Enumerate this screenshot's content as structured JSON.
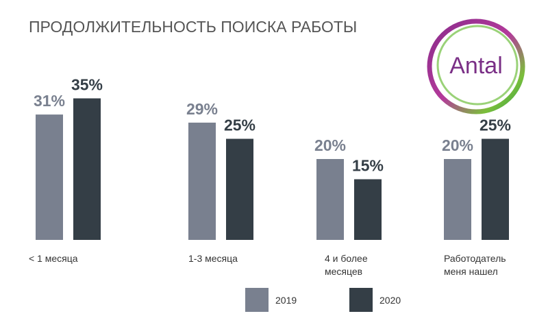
{
  "chart_data": {
    "type": "bar",
    "title": "ПРОДОЛЖИТЕЛЬНОСТЬ ПОИСКА РАБОТЫ",
    "categories": [
      "< 1 месяца",
      "1-3 месяца",
      "4 и более месяцев",
      "Работодатель меня нашел"
    ],
    "series": [
      {
        "name": "2019",
        "color": "#79808f",
        "values": [
          31,
          29,
          20,
          20
        ],
        "value_labels": [
          "31%",
          "29%",
          "20%",
          "20%"
        ]
      },
      {
        "name": "2020",
        "color": "#343e46",
        "values": [
          35,
          25,
          15,
          25
        ],
        "value_labels": [
          "35%",
          "25%",
          "15%",
          "25%"
        ]
      }
    ]
  },
  "logo": "Antal"
}
